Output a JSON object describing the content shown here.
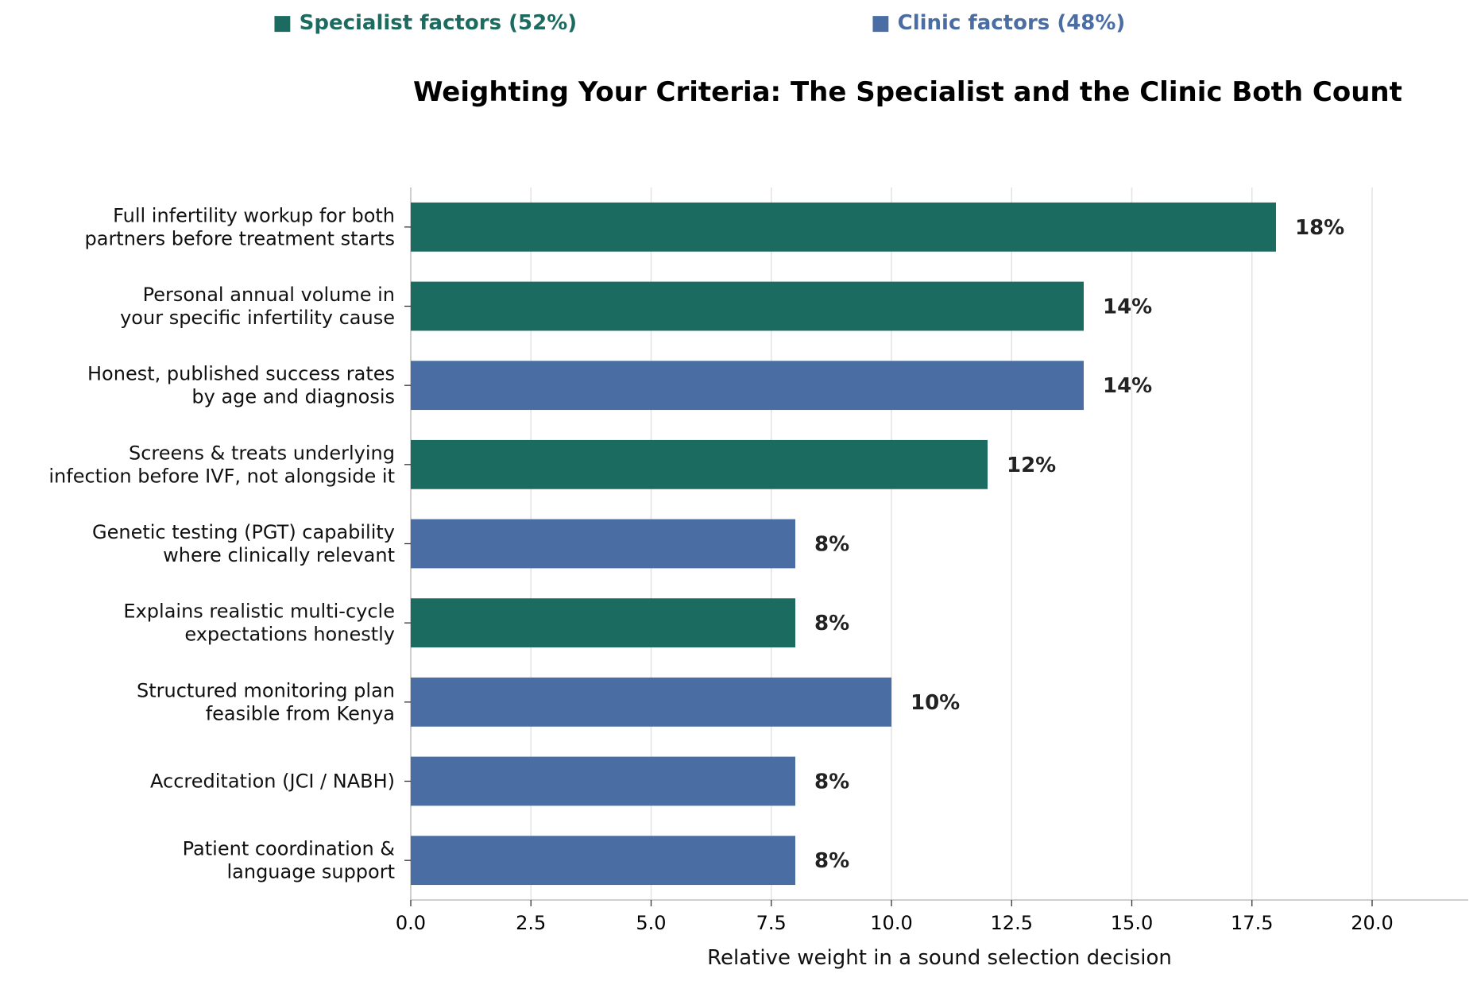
{
  "legend": [
    {
      "label": "■ Specialist factors (52%)",
      "color": "#1c6b61"
    },
    {
      "label": "■ Clinic factors (48%)",
      "color": "#4a6ea4"
    }
  ],
  "chart_data": {
    "type": "bar",
    "orientation": "horizontal",
    "title": "Weighting Your Criteria: The Specialist and the Clinic Both Count",
    "xlabel": "Relative weight in a sound selection decision",
    "ylabel": "",
    "xlim": [
      0,
      22
    ],
    "xticks": [
      0.0,
      2.5,
      5.0,
      7.5,
      10.0,
      12.5,
      15.0,
      17.5,
      20.0
    ],
    "xtick_labels": [
      "0.0",
      "2.5",
      "5.0",
      "7.5",
      "10.0",
      "12.5",
      "15.0",
      "17.5",
      "20.0"
    ],
    "grid": "vertical",
    "legend_position": "top",
    "categories": [
      [
        "Full infertility workup for both",
        "partners before treatment starts"
      ],
      [
        "Personal annual volume in",
        "your specific infertility cause"
      ],
      [
        "Honest, published success rates",
        "by age and diagnosis"
      ],
      [
        "Screens & treats underlying",
        "infection before IVF, not alongside it"
      ],
      [
        "Genetic testing (PGT) capability",
        "where clinically relevant"
      ],
      [
        "Explains realistic multi-cycle",
        "expectations honestly"
      ],
      [
        "Structured monitoring plan",
        "feasible from Kenya"
      ],
      [
        "Accreditation (JCI / NABH)"
      ],
      [
        "Patient coordination &",
        "language support"
      ]
    ],
    "values": [
      18,
      14,
      14,
      12,
      8,
      8,
      10,
      8,
      8
    ],
    "data_labels": [
      "18%",
      "14%",
      "14%",
      "12%",
      "8%",
      "8%",
      "10%",
      "8%",
      "8%"
    ],
    "groups": [
      "specialist",
      "specialist",
      "clinic",
      "specialist",
      "clinic",
      "specialist",
      "clinic",
      "clinic",
      "clinic"
    ],
    "colors": {
      "specialist": "#1c6b61",
      "clinic": "#4a6ea4"
    }
  }
}
